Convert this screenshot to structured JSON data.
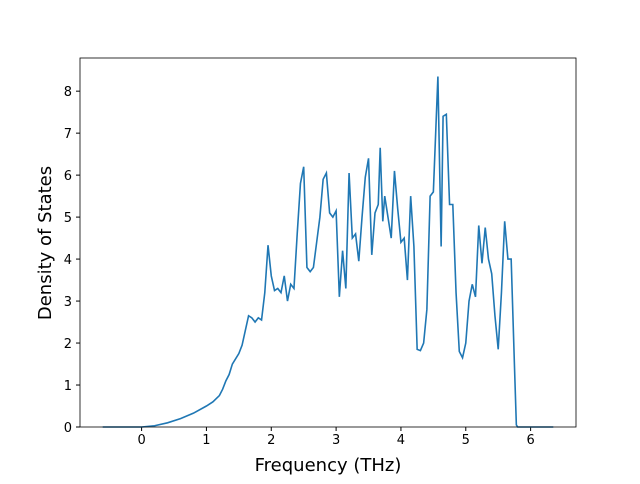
{
  "chart_data": {
    "type": "line",
    "xlabel": "Frequency (THz)",
    "ylabel": "Density of States",
    "x": [
      -0.6,
      -0.4,
      -0.2,
      0,
      0.2,
      0.4,
      0.6,
      0.8,
      1.0,
      1.1,
      1.2,
      1.25,
      1.3,
      1.35,
      1.4,
      1.5,
      1.55,
      1.6,
      1.65,
      1.7,
      1.75,
      1.8,
      1.85,
      1.9,
      1.95,
      2.0,
      2.05,
      2.1,
      2.15,
      2.2,
      2.25,
      2.3,
      2.35,
      2.4,
      2.45,
      2.5,
      2.55,
      2.6,
      2.65,
      2.7,
      2.75,
      2.8,
      2.85,
      2.9,
      2.95,
      3.0,
      3.05,
      3.1,
      3.15,
      3.2,
      3.25,
      3.3,
      3.35,
      3.4,
      3.45,
      3.5,
      3.55,
      3.6,
      3.65,
      3.68,
      3.72,
      3.75,
      3.8,
      3.85,
      3.9,
      3.95,
      4.0,
      4.05,
      4.1,
      4.15,
      4.2,
      4.25,
      4.3,
      4.35,
      4.4,
      4.45,
      4.5,
      4.57,
      4.62,
      4.65,
      4.7,
      4.75,
      4.8,
      4.85,
      4.9,
      4.95,
      5.0,
      5.05,
      5.1,
      5.15,
      5.2,
      5.25,
      5.3,
      5.35,
      5.4,
      5.45,
      5.5,
      5.55,
      5.6,
      5.65,
      5.7,
      5.75,
      5.78,
      5.8,
      6.0,
      6.35
    ],
    "series": [
      {
        "color": "#1f77b4",
        "values": [
          0,
          0,
          0,
          0,
          0.03,
          0.1,
          0.2,
          0.33,
          0.5,
          0.6,
          0.75,
          0.9,
          1.1,
          1.25,
          1.5,
          1.75,
          1.95,
          2.3,
          2.65,
          2.6,
          2.5,
          2.6,
          2.55,
          3.2,
          4.33,
          3.6,
          3.25,
          3.3,
          3.2,
          3.6,
          3.0,
          3.4,
          3.3,
          4.6,
          5.8,
          6.2,
          3.8,
          3.7,
          3.8,
          4.4,
          5.0,
          5.9,
          6.05,
          5.1,
          5.0,
          5.15,
          3.1,
          4.2,
          3.3,
          6.05,
          4.5,
          4.6,
          3.95,
          5.0,
          5.95,
          6.4,
          4.1,
          5.1,
          5.3,
          6.65,
          4.9,
          5.5,
          5.0,
          4.5,
          6.1,
          5.2,
          4.4,
          4.5,
          3.5,
          5.5,
          4.3,
          1.85,
          1.82,
          2.0,
          2.8,
          5.5,
          5.6,
          8.35,
          4.3,
          7.4,
          7.45,
          5.3,
          5.3,
          3.2,
          1.8,
          1.65,
          2.0,
          3.0,
          3.4,
          3.1,
          4.8,
          3.9,
          4.75,
          4.0,
          3.65,
          2.65,
          1.85,
          3.2,
          4.9,
          4.0,
          4.0,
          1.5,
          0.05,
          0,
          0,
          0
        ]
      }
    ],
    "xlim": [
      -0.95,
      6.7
    ],
    "ylim": [
      0,
      8.79
    ],
    "xticks": [
      0,
      1,
      2,
      3,
      4,
      5,
      6
    ],
    "yticks": [
      0,
      1,
      2,
      3,
      4,
      5,
      6,
      7,
      8
    ]
  }
}
